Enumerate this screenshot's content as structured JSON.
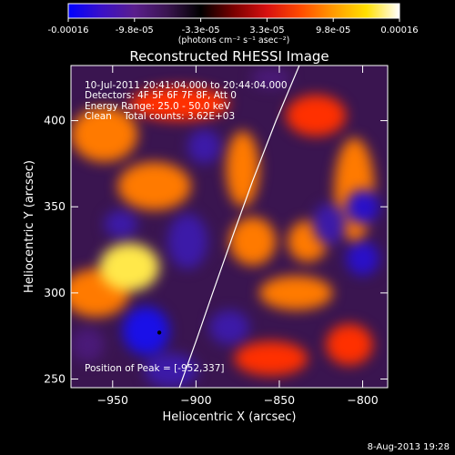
{
  "colors": {
    "background": "#000000",
    "text": "#ffffff",
    "scale": [
      "#0000ff",
      "#3a10c8",
      "#5a1e8c",
      "#3a1550",
      "#000000",
      "#7a0000",
      "#d81010",
      "#ff4a00",
      "#ff9a00",
      "#ffe000",
      "#ffffff"
    ]
  },
  "colorbar": {
    "ticks": [
      "-0.00016",
      "-9.8e-05",
      "-3.3e-05",
      "3.3e-05",
      "9.8e-05",
      "0.00016"
    ],
    "units": "(photons cm⁻² s⁻¹ asec⁻²)"
  },
  "chart_data": {
    "type": "heatmap",
    "title": "Reconstructed RHESSI Image",
    "xlabel": "Heliocentric X (arcsec)",
    "ylabel": "Heliocentric Y (arcsec)",
    "xlim": [
      -975,
      -785
    ],
    "ylim": [
      245,
      432
    ],
    "x_ticks": [
      -950,
      -900,
      -850,
      -800
    ],
    "y_ticks": [
      250,
      300,
      350,
      400
    ],
    "x_tick_labels": [
      "−950",
      "−900",
      "−850",
      "−800"
    ],
    "y_tick_labels": [
      "250",
      "300",
      "350",
      "400"
    ],
    "clim": [
      -0.00016,
      0.00016
    ],
    "peak": [
      -952,
      337
    ],
    "limb_curve": [
      [
        -910,
        245
      ],
      [
        -900,
        272
      ],
      [
        -890,
        300
      ],
      [
        -878,
        333
      ],
      [
        -866,
        365
      ],
      [
        -852,
        400
      ],
      [
        -838,
        432
      ]
    ],
    "blobs": [
      {
        "x": -940,
        "y": 315,
        "rx": 18,
        "ry": 14,
        "v": 1.0
      },
      {
        "x": -960,
        "y": 300,
        "rx": 20,
        "ry": 14,
        "v": 0.55
      },
      {
        "x": -925,
        "y": 362,
        "rx": 22,
        "ry": 14,
        "v": 0.6
      },
      {
        "x": -955,
        "y": 392,
        "rx": 20,
        "ry": 16,
        "v": 0.55
      },
      {
        "x": -910,
        "y": 410,
        "rx": 30,
        "ry": 10,
        "v": 0.45
      },
      {
        "x": -872,
        "y": 372,
        "rx": 10,
        "ry": 22,
        "v": 0.65
      },
      {
        "x": -866,
        "y": 330,
        "rx": 14,
        "ry": 14,
        "v": 0.5
      },
      {
        "x": -833,
        "y": 330,
        "rx": 12,
        "ry": 12,
        "v": 0.5
      },
      {
        "x": -840,
        "y": 300,
        "rx": 22,
        "ry": 10,
        "v": 0.5
      },
      {
        "x": -805,
        "y": 360,
        "rx": 12,
        "ry": 30,
        "v": 0.5
      },
      {
        "x": -828,
        "y": 403,
        "rx": 18,
        "ry": 12,
        "v": 0.45
      },
      {
        "x": -855,
        "y": 262,
        "rx": 22,
        "ry": 10,
        "v": 0.45
      },
      {
        "x": -808,
        "y": 270,
        "rx": 14,
        "ry": 12,
        "v": 0.4
      },
      {
        "x": -930,
        "y": 278,
        "rx": 14,
        "ry": 14,
        "v": -1.0
      },
      {
        "x": -915,
        "y": 255,
        "rx": 16,
        "ry": 10,
        "v": -0.6
      },
      {
        "x": -800,
        "y": 350,
        "rx": 10,
        "ry": 10,
        "v": -0.8
      },
      {
        "x": -800,
        "y": 320,
        "rx": 10,
        "ry": 10,
        "v": -0.7
      },
      {
        "x": -820,
        "y": 340,
        "rx": 10,
        "ry": 12,
        "v": -0.5
      },
      {
        "x": -895,
        "y": 385,
        "rx": 10,
        "ry": 10,
        "v": -0.5
      },
      {
        "x": -880,
        "y": 280,
        "rx": 12,
        "ry": 10,
        "v": -0.45
      },
      {
        "x": -945,
        "y": 340,
        "rx": 10,
        "ry": 8,
        "v": -0.4
      },
      {
        "x": -905,
        "y": 330,
        "rx": 12,
        "ry": 16,
        "v": -0.4
      },
      {
        "x": -855,
        "y": 425,
        "rx": 12,
        "ry": 6,
        "v": -0.35
      },
      {
        "x": -965,
        "y": 270,
        "rx": 10,
        "ry": 10,
        "v": -0.35
      }
    ]
  },
  "annotations": {
    "line1": "10-Jul-2011 20:41:04.000 to 20:44:04.000",
    "line2": "Detectors: 4F 5F 6F 7F 8F, Att 0",
    "line3": "Energy Range: 25.0 - 50.0 keV",
    "line4": "Clean    Total counts: 3.62E+03",
    "peak_label": "Position of Peak = [-952,337]"
  },
  "footer": {
    "date": "8-Aug-2013 19:28"
  }
}
